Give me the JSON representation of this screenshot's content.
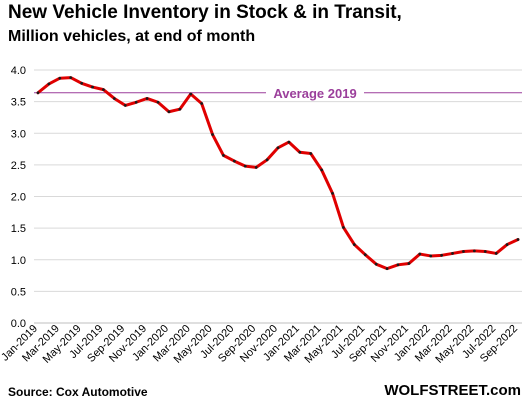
{
  "chart_data": {
    "type": "line",
    "title": "New Vehicle Inventory in Stock & in Transit,",
    "subtitle": "Million vehicles, at end of month",
    "ylim": [
      0,
      4
    ],
    "yticks": [
      "0.0",
      "0.5",
      "1.0",
      "1.5",
      "2.0",
      "2.5",
      "3.0",
      "3.5",
      "4.0"
    ],
    "grid": "horizontal",
    "x_tick_labels": [
      "Jan-2019",
      "Mar-2019",
      "May-2019",
      "Jul-2019",
      "Sep-2019",
      "Nov-2019",
      "Jan-2020",
      "Mar-2020",
      "May-2020",
      "Jul-2020",
      "Sep-2020",
      "Nov-2020",
      "Jan-2021",
      "Mar-2021",
      "May-2021",
      "Jul-2021",
      "Sep-2021",
      "Nov-2021",
      "Jan-2022",
      "Mar-2022",
      "May-2022",
      "Jul-2022",
      "Sep-2022"
    ],
    "x": [
      "Jan-2019",
      "Feb-2019",
      "Mar-2019",
      "Apr-2019",
      "May-2019",
      "Jun-2019",
      "Jul-2019",
      "Aug-2019",
      "Sep-2019",
      "Oct-2019",
      "Nov-2019",
      "Dec-2019",
      "Jan-2020",
      "Feb-2020",
      "Mar-2020",
      "Apr-2020",
      "May-2020",
      "Jun-2020",
      "Jul-2020",
      "Aug-2020",
      "Sep-2020",
      "Oct-2020",
      "Nov-2020",
      "Dec-2020",
      "Jan-2021",
      "Feb-2021",
      "Mar-2021",
      "Apr-2021",
      "May-2021",
      "Jun-2021",
      "Jul-2021",
      "Aug-2021",
      "Sep-2021",
      "Oct-2021",
      "Nov-2021",
      "Dec-2021",
      "Jan-2022",
      "Feb-2022",
      "Mar-2022",
      "Apr-2022",
      "May-2022",
      "Jun-2022",
      "Jul-2022",
      "Aug-2022",
      "Sep-2022"
    ],
    "series": [
      {
        "color": "#e00000",
        "values": [
          3.64,
          3.78,
          3.87,
          3.88,
          3.79,
          3.73,
          3.69,
          3.55,
          3.44,
          3.49,
          3.55,
          3.49,
          3.34,
          3.38,
          3.62,
          3.47,
          2.98,
          2.65,
          2.56,
          2.48,
          2.46,
          2.58,
          2.77,
          2.86,
          2.7,
          2.68,
          2.42,
          2.05,
          1.51,
          1.24,
          1.08,
          0.93,
          0.86,
          0.92,
          0.94,
          1.09,
          1.06,
          1.07,
          1.1,
          1.13,
          1.14,
          1.13,
          1.1,
          1.24,
          1.32
        ]
      }
    ],
    "reference_line": {
      "label": "Average 2019",
      "value": 3.64,
      "color": "#9b3f9b"
    }
  },
  "footer": {
    "source": "Source: Cox Automotive",
    "brand": "WOLFSTREET.com"
  }
}
